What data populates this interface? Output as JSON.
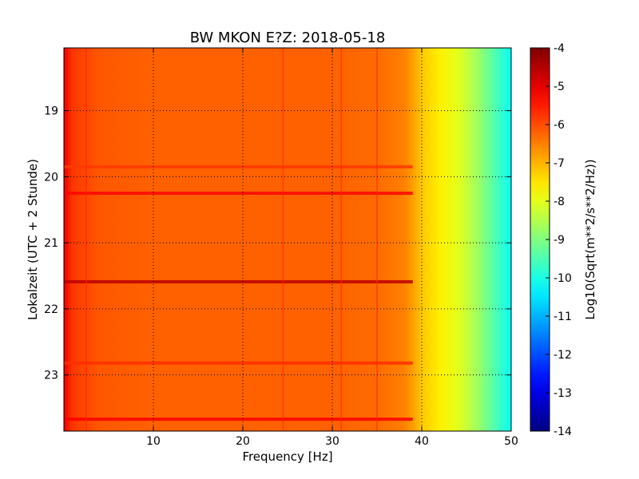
{
  "chart_data": {
    "type": "heatmap",
    "title": "BW MKON E?Z: 2018-05-18",
    "xlabel": "Frequency [Hz]",
    "ylabel": "Lokalzeit (UTC + 2 Stunde)",
    "colorbar_label": "Log10(Sqrt(m**2/s**2/Hz))",
    "xlim": [
      0,
      50
    ],
    "ylim": [
      18.05,
      23.85
    ],
    "y_inverted": true,
    "x_ticks": [
      "10",
      "20",
      "30",
      "40",
      "50"
    ],
    "y_ticks": [
      "19",
      "20",
      "21",
      "22",
      "23"
    ],
    "colorbar_range": [
      -14,
      -4
    ],
    "colorbar_ticks": [
      "-4",
      "-5",
      "-6",
      "-7",
      "-8",
      "-9",
      "-10",
      "-11",
      "-12",
      "-13",
      "-14"
    ],
    "colormap": "jet",
    "grid": true,
    "value_profile": {
      "freq_hz": [
        0,
        1,
        4,
        10,
        20,
        30,
        35,
        38,
        39,
        40,
        42,
        44,
        46,
        48,
        50
      ],
      "level": [
        -5.1,
        -5.8,
        -6.1,
        -6.2,
        -6.2,
        -6.2,
        -6.3,
        -6.5,
        -6.8,
        -7.2,
        -7.6,
        -8.0,
        -8.6,
        -9.4,
        -10.2
      ]
    },
    "horizontal_bands": [
      {
        "time": 20.25,
        "level": -5.3
      },
      {
        "time": 21.59,
        "level": -4.6
      },
      {
        "time": 23.67,
        "level": -5.2
      },
      {
        "time": 22.82,
        "level": -5.7
      },
      {
        "time": 19.85,
        "level": -5.8
      }
    ],
    "vertical_lines_hz": [
      2.5,
      24.5,
      31,
      35
    ]
  }
}
